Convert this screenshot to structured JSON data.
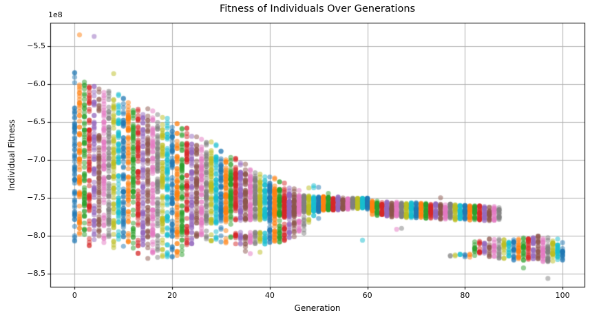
{
  "figure": {
    "title": "Fitness of Individuals Over Generations",
    "xlabel": "Generation",
    "ylabel": "Individual Fitness",
    "offset_text": "1e8"
  },
  "chart_data": {
    "type": "scatter",
    "title": "Fitness of Individuals Over Generations",
    "xlabel": "Generation",
    "ylabel": "Individual Fitness",
    "y_scale_offset": "1e8",
    "grid": true,
    "legend": "none",
    "marker_alpha": 0.5,
    "marker_diameter_px": 7.2,
    "xlim": [
      -5,
      104.5
    ],
    "ylim_1e8": [
      -8.67,
      -5.19
    ],
    "x_ticks": [
      {
        "v": 0,
        "label": "0"
      },
      {
        "v": 20,
        "label": "20"
      },
      {
        "v": 40,
        "label": "40"
      },
      {
        "v": 60,
        "label": "60"
      },
      {
        "v": 80,
        "label": "80"
      },
      {
        "v": 100,
        "label": "100"
      }
    ],
    "y_ticks": [
      {
        "v": -5.5,
        "label": "−5.5"
      },
      {
        "v": -6.0,
        "label": "−6.0"
      },
      {
        "v": -6.5,
        "label": "−6.5"
      },
      {
        "v": -7.0,
        "label": "−7.0"
      },
      {
        "v": -7.5,
        "label": "−7.5"
      },
      {
        "v": -8.0,
        "label": "−8.0"
      },
      {
        "v": -8.5,
        "label": "−8.5"
      }
    ],
    "color_cycle": [
      "#1f77b4",
      "#ff7f0e",
      "#2ca02c",
      "#d62728",
      "#9467bd",
      "#8c564b",
      "#e377c2",
      "#7f7f7f",
      "#bcbd22",
      "#17becf"
    ],
    "color_rule": "point color = color_cycle[generation % 10]",
    "bands_format": "per generation: [y_high_1e8, y_low_1e8, n_points]; points drawn at x = generation",
    "gen_bands": [
      [
        [
          -5.8,
          -6.0,
          4
        ],
        [
          -6.25,
          -7.82,
          60
        ],
        [
          -7.85,
          -8.12,
          5
        ]
      ],
      [
        [
          -5.35,
          -5.35,
          1
        ],
        [
          -5.98,
          -6.08,
          3
        ],
        [
          -6.08,
          -7.85,
          60
        ],
        [
          -7.88,
          -8.02,
          4
        ]
      ],
      [
        [
          -5.95,
          -6.11,
          4
        ],
        [
          -6.11,
          -7.85,
          60
        ],
        [
          -7.88,
          -8.0,
          4
        ]
      ],
      [
        [
          -6.0,
          -6.14,
          4
        ],
        [
          -6.14,
          -7.86,
          60
        ],
        [
          -7.9,
          -8.15,
          5
        ]
      ],
      [
        [
          -5.37,
          -5.37,
          1
        ],
        [
          -6.0,
          -6.18,
          4
        ],
        [
          -6.18,
          -7.88,
          60
        ],
        [
          -7.9,
          -8.05,
          4
        ]
      ],
      [
        [
          -6.02,
          -6.21,
          4
        ],
        [
          -6.21,
          -7.86,
          60
        ],
        [
          -7.9,
          -8.0,
          4
        ]
      ],
      [
        [
          -6.05,
          -6.24,
          4
        ],
        [
          -6.24,
          -7.9,
          60
        ],
        [
          -7.92,
          -8.1,
          4
        ]
      ],
      [
        [
          -6.08,
          -6.27,
          4
        ],
        [
          -6.27,
          -7.88,
          60
        ],
        [
          -7.9,
          -8.02,
          4
        ]
      ],
      [
        [
          -5.86,
          -5.86,
          1
        ],
        [
          -6.1,
          -6.3,
          4
        ],
        [
          -6.3,
          -7.92,
          60
        ],
        [
          -7.95,
          -8.2,
          5
        ]
      ],
      [
        [
          -6.13,
          -6.33,
          4
        ],
        [
          -6.33,
          -7.88,
          60
        ],
        [
          -7.92,
          -8.05,
          4
        ]
      ],
      [
        [
          -6.17,
          -6.37,
          4
        ],
        [
          -6.37,
          -7.92,
          60
        ],
        [
          -7.95,
          -8.15,
          5
        ]
      ],
      [
        [
          -6.2,
          -6.4,
          4
        ],
        [
          -6.4,
          -7.9,
          58
        ],
        [
          -7.92,
          -8.1,
          5
        ]
      ],
      [
        [
          -6.23,
          -6.43,
          4
        ],
        [
          -6.43,
          -7.95,
          58
        ],
        [
          -7.97,
          -8.2,
          5
        ]
      ],
      [
        [
          -6.26,
          -6.46,
          4
        ],
        [
          -6.46,
          -7.95,
          58
        ],
        [
          -7.98,
          -8.25,
          6
        ]
      ],
      [
        [
          -6.29,
          -6.49,
          4
        ],
        [
          -6.49,
          -7.98,
          58
        ],
        [
          -8.0,
          -8.28,
          6
        ]
      ],
      [
        [
          -6.32,
          -6.52,
          4
        ],
        [
          -6.52,
          -7.98,
          58
        ],
        [
          -8.0,
          -8.3,
          6
        ]
      ],
      [
        [
          -6.35,
          -6.55,
          4
        ],
        [
          -6.55,
          -8.0,
          58
        ],
        [
          -8.02,
          -8.25,
          6
        ]
      ],
      [
        [
          -6.39,
          -6.59,
          4
        ],
        [
          -6.59,
          -8.02,
          58
        ],
        [
          -8.05,
          -8.3,
          6
        ]
      ],
      [
        [
          -6.42,
          -6.62,
          4
        ],
        [
          -6.62,
          -8.02,
          58
        ],
        [
          -8.05,
          -8.3,
          6
        ]
      ],
      [
        [
          -6.45,
          -6.65,
          4
        ],
        [
          -6.65,
          -8.05,
          58
        ],
        [
          -8.08,
          -8.28,
          6
        ]
      ],
      [
        [
          -6.48,
          -6.68,
          4
        ],
        [
          -6.68,
          -8.05,
          55
        ],
        [
          -8.08,
          -8.3,
          6
        ]
      ],
      [
        [
          -6.51,
          -6.71,
          4
        ],
        [
          -6.71,
          -8.02,
          55
        ],
        [
          -8.05,
          -8.28,
          6
        ]
      ],
      [
        [
          -6.54,
          -6.74,
          4
        ],
        [
          -6.74,
          -8.0,
          55
        ],
        [
          -8.02,
          -8.25,
          5
        ]
      ],
      [
        [
          -6.57,
          -6.77,
          4
        ],
        [
          -6.77,
          -7.98,
          55
        ],
        [
          -8.0,
          -8.2,
          5
        ]
      ],
      [
        [
          -6.61,
          -6.81,
          3
        ],
        [
          -6.81,
          -7.96,
          55
        ],
        [
          -7.98,
          -8.15,
          5
        ]
      ],
      [
        [
          -6.64,
          -6.84,
          3
        ],
        [
          -6.84,
          -7.92,
          52
        ],
        [
          -7.95,
          -8.1,
          5
        ]
      ],
      [
        [
          -6.67,
          -6.87,
          3
        ],
        [
          -6.87,
          -7.9,
          52
        ],
        [
          -7.92,
          -8.05,
          4
        ]
      ],
      [
        [
          -6.7,
          -6.9,
          3
        ],
        [
          -6.9,
          -7.88,
          52
        ],
        [
          -7.9,
          -8.1,
          4
        ]
      ],
      [
        [
          -6.73,
          -6.93,
          3
        ],
        [
          -6.93,
          -7.86,
          52
        ],
        [
          -7.88,
          -8.1,
          4
        ]
      ],
      [
        [
          -6.76,
          -6.96,
          3
        ],
        [
          -6.96,
          -7.85,
          52
        ],
        [
          -7.88,
          -8.05,
          4
        ]
      ],
      [
        [
          -6.8,
          -7.0,
          3
        ],
        [
          -7.0,
          -7.82,
          50
        ],
        [
          -7.85,
          -8.2,
          4
        ]
      ],
      [
        [
          -6.88,
          -7.03,
          3
        ],
        [
          -7.03,
          -7.82,
          50
        ],
        [
          -7.85,
          -8.15,
          4
        ]
      ],
      [
        [
          -6.92,
          -7.06,
          3
        ],
        [
          -7.06,
          -7.8,
          50
        ],
        [
          -7.83,
          -8.1,
          3
        ]
      ],
      [
        [
          -6.95,
          -7.09,
          3
        ],
        [
          -7.09,
          -7.8,
          50
        ],
        [
          -7.95,
          -8.12,
          9
        ]
      ],
      [
        [
          -7.0,
          -7.12,
          2
        ],
        [
          -7.12,
          -7.8,
          50
        ],
        [
          -7.95,
          -8.12,
          9
        ]
      ],
      [
        [
          -7.03,
          -7.15,
          2
        ],
        [
          -7.15,
          -7.8,
          48
        ],
        [
          -7.95,
          -8.15,
          10
        ],
        [
          -8.2,
          -8.22,
          1
        ]
      ],
      [
        [
          -7.06,
          -7.18,
          2
        ],
        [
          -7.18,
          -7.8,
          48
        ],
        [
          -7.95,
          -8.15,
          10
        ],
        [
          -8.2,
          -8.24,
          1
        ]
      ],
      [
        [
          -7.1,
          -7.22,
          2
        ],
        [
          -7.22,
          -7.8,
          48
        ],
        [
          -7.95,
          -8.12,
          10
        ]
      ],
      [
        [
          -7.13,
          -7.25,
          2
        ],
        [
          -7.25,
          -7.8,
          48
        ],
        [
          -7.95,
          -8.12,
          10
        ],
        [
          -8.18,
          -8.22,
          1
        ]
      ],
      [
        [
          -7.16,
          -7.28,
          2
        ],
        [
          -7.28,
          -7.78,
          48
        ],
        [
          -7.95,
          -8.12,
          10
        ]
      ],
      [
        [
          -7.19,
          -7.31,
          2
        ],
        [
          -7.31,
          -7.78,
          46
        ],
        [
          -7.78,
          -8.1,
          16
        ]
      ],
      [
        [
          -7.22,
          -7.34,
          2
        ],
        [
          -7.34,
          -7.78,
          46
        ],
        [
          -7.78,
          -8.08,
          16
        ]
      ],
      [
        [
          -7.25,
          -7.37,
          2
        ],
        [
          -7.37,
          -7.76,
          46
        ],
        [
          -7.76,
          -8.08,
          16
        ]
      ],
      [
        [
          -7.28,
          -7.4,
          2
        ],
        [
          -7.4,
          -7.75,
          46
        ],
        [
          -7.75,
          -8.06,
          15
        ]
      ],
      [
        [
          -7.32,
          -7.44,
          2
        ],
        [
          -7.44,
          -7.74,
          45
        ],
        [
          -7.74,
          -8.05,
          14
        ]
      ],
      [
        [
          -7.35,
          -7.45,
          2
        ],
        [
          -7.45,
          -7.73,
          42
        ],
        [
          -7.73,
          -8.02,
          12
        ]
      ],
      [
        [
          -7.38,
          -7.46,
          1
        ],
        [
          -7.46,
          -7.72,
          42
        ],
        [
          -7.72,
          -8.0,
          10
        ]
      ],
      [
        [
          -7.46,
          -7.71,
          40
        ],
        [
          -7.71,
          -7.98,
          8
        ]
      ],
      [
        [
          -7.35,
          -7.38,
          1
        ],
        [
          -7.47,
          -7.7,
          36
        ],
        [
          -7.72,
          -7.82,
          3
        ]
      ],
      [
        [
          -7.33,
          -7.37,
          2
        ],
        [
          -7.48,
          -7.68,
          34
        ],
        [
          -7.7,
          -7.8,
          2
        ]
      ],
      [
        [
          -7.35,
          -7.36,
          1
        ],
        [
          -7.48,
          -7.68,
          34
        ],
        [
          -7.74,
          -7.78,
          1
        ]
      ],
      [
        [
          -7.48,
          -7.67,
          33
        ]
      ],
      [
        [
          -7.44,
          -7.44,
          1
        ],
        [
          -7.49,
          -7.66,
          33
        ]
      ],
      [
        [
          -7.49,
          -7.66,
          33
        ]
      ],
      [
        [
          -7.48,
          -7.66,
          32
        ]
      ],
      [
        [
          -7.49,
          -7.65,
          32
        ]
      ],
      [
        [
          -7.49,
          -7.65,
          32
        ]
      ],
      [
        [
          -7.5,
          -7.64,
          32
        ]
      ],
      [
        [
          -7.5,
          -7.64,
          32
        ]
      ],
      [
        [
          -7.5,
          -7.64,
          32
        ],
        [
          -8.04,
          -8.06,
          1
        ]
      ],
      [
        [
          -7.5,
          -7.65,
          32
        ]
      ],
      [
        [
          -7.54,
          -7.72,
          30
        ]
      ],
      [
        [
          -7.54,
          -7.73,
          30
        ]
      ],
      [
        [
          -7.55,
          -7.74,
          30
        ]
      ],
      [
        [
          -7.55,
          -7.74,
          30
        ]
      ],
      [
        [
          -7.55,
          -7.75,
          30
        ]
      ],
      [
        [
          -7.55,
          -7.75,
          30
        ],
        [
          -7.88,
          -7.92,
          1
        ]
      ],
      [
        [
          -7.56,
          -7.75,
          30
        ],
        [
          -7.9,
          -7.94,
          1
        ]
      ],
      [
        [
          -7.56,
          -7.76,
          30
        ]
      ],
      [
        [
          -7.56,
          -7.76,
          30
        ]
      ],
      [
        [
          -7.56,
          -7.76,
          28
        ]
      ],
      [
        [
          -7.57,
          -7.76,
          28
        ]
      ],
      [
        [
          -7.57,
          -7.77,
          28
        ]
      ],
      [
        [
          -7.57,
          -7.77,
          28
        ]
      ],
      [
        [
          -7.57,
          -7.77,
          28
        ]
      ],
      [
        [
          -7.47,
          -7.5,
          1
        ],
        [
          -7.58,
          -7.78,
          26
        ]
      ],
      [
        [
          -7.58,
          -7.78,
          26
        ]
      ],
      [
        [
          -7.58,
          -7.78,
          26
        ],
        [
          -8.23,
          -8.27,
          2
        ]
      ],
      [
        [
          -7.59,
          -7.79,
          26
        ],
        [
          -8.23,
          -8.27,
          2
        ]
      ],
      [
        [
          -7.59,
          -7.79,
          26
        ],
        [
          -8.23,
          -8.28,
          3
        ]
      ],
      [
        [
          -7.59,
          -7.79,
          26
        ],
        [
          -8.22,
          -8.28,
          3
        ]
      ],
      [
        [
          -7.6,
          -7.8,
          26
        ],
        [
          -8.22,
          -8.28,
          3
        ]
      ],
      [
        [
          -7.6,
          -7.8,
          24
        ],
        [
          -8.06,
          -8.28,
          10
        ]
      ],
      [
        [
          -7.6,
          -7.8,
          24
        ],
        [
          -8.05,
          -8.28,
          11
        ]
      ],
      [
        [
          -7.6,
          -7.8,
          22
        ],
        [
          -8.05,
          -8.28,
          11
        ]
      ],
      [
        [
          -7.61,
          -7.8,
          20
        ],
        [
          -8.04,
          -8.28,
          12
        ]
      ],
      [
        [
          -7.61,
          -7.8,
          18
        ],
        [
          -8.04,
          -8.3,
          12
        ]
      ],
      [
        [
          -7.62,
          -7.8,
          16
        ],
        [
          -8.04,
          -8.3,
          12
        ]
      ],
      [
        [
          -8.04,
          -8.3,
          14
        ]
      ],
      [
        [
          -8.03,
          -8.3,
          14
        ]
      ],
      [
        [
          -8.03,
          -8.32,
          18
        ]
      ],
      [
        [
          -8.02,
          -8.32,
          18
        ]
      ],
      [
        [
          -8.02,
          -8.33,
          18
        ],
        [
          -8.42,
          -8.44,
          1
        ]
      ],
      [
        [
          -8.0,
          -8.33,
          20
        ]
      ],
      [
        [
          -8.0,
          -8.34,
          20
        ]
      ],
      [
        [
          -8.0,
          -8.34,
          22
        ]
      ],
      [
        [
          -8.01,
          -8.34,
          22
        ]
      ],
      [
        [
          -8.02,
          -8.34,
          22
        ],
        [
          -8.55,
          -8.57,
          1
        ]
      ],
      [
        [
          -8.03,
          -8.34,
          22
        ]
      ],
      [
        [
          -8.04,
          -8.33,
          20
        ]
      ],
      [
        [
          -8.05,
          -8.32,
          16
        ]
      ]
    ]
  }
}
